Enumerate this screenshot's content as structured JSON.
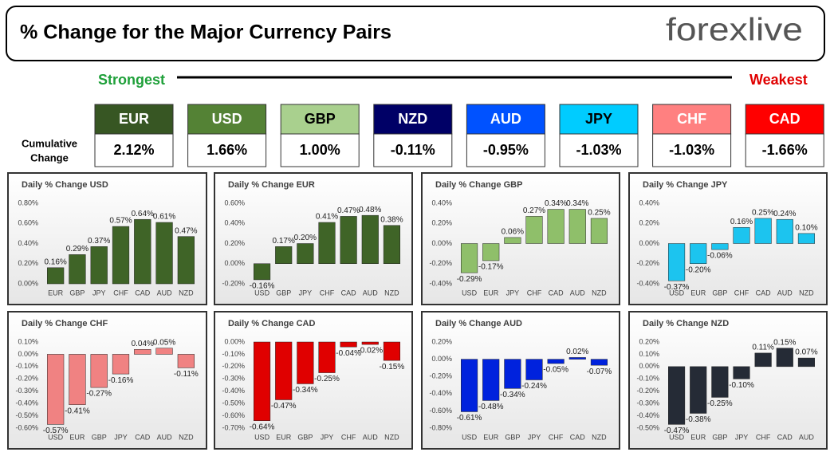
{
  "header": {
    "title": "% Change for the Major Currency Pairs",
    "logo": "forexlive",
    "strongest": "Strongest",
    "weakest": "Weakest"
  },
  "summary": {
    "label": [
      "Cumulative",
      "Change"
    ],
    "tiles": [
      {
        "currency": "EUR",
        "change": "2.12%",
        "color": "#375623",
        "text_color": "#ffffff"
      },
      {
        "currency": "USD",
        "change": "1.66%",
        "color": "#548235",
        "text_color": "#ffffff"
      },
      {
        "currency": "GBP",
        "change": "1.00%",
        "color": "#a9d08e",
        "text_color": "#000000"
      },
      {
        "currency": "NZD",
        "change": "-0.11%",
        "color": "#000066",
        "text_color": "#ffffff"
      },
      {
        "currency": "AUD",
        "change": "-0.95%",
        "color": "#0052ff",
        "text_color": "#ffffff"
      },
      {
        "currency": "JPY",
        "change": "-1.03%",
        "color": "#00ccff",
        "text_color": "#000000"
      },
      {
        "currency": "CHF",
        "change": "-1.03%",
        "color": "#ff8080",
        "text_color": "#ffffff"
      },
      {
        "currency": "CAD",
        "change": "-1.66%",
        "color": "#ff0000",
        "text_color": "#ffffff"
      }
    ]
  },
  "chart_data": [
    {
      "type": "bar",
      "title": "Daily % Change USD",
      "color": "#3f6427",
      "categories": [
        "EUR",
        "GBP",
        "JPY",
        "CHF",
        "CAD",
        "AUD",
        "NZD"
      ],
      "values": [
        0.16,
        0.29,
        0.37,
        0.57,
        0.64,
        0.61,
        0.47
      ],
      "value_labels": [
        "0.16%",
        "0.29%",
        "0.37%",
        "0.57%",
        "0.64%",
        "0.61%",
        "0.47%"
      ],
      "ylim": [
        0,
        0.8
      ],
      "yticks": [
        {
          "value": 0,
          "label": "0.00%"
        },
        {
          "value": 0.2,
          "label": "0.20%"
        },
        {
          "value": 0.4,
          "label": "0.40%"
        },
        {
          "value": 0.6,
          "label": "0.60%"
        },
        {
          "value": 0.8,
          "label": "0.80%"
        }
      ]
    },
    {
      "type": "bar",
      "title": "Daily % Change EUR",
      "color": "#3f6427",
      "categories": [
        "USD",
        "GBP",
        "JPY",
        "CHF",
        "CAD",
        "AUD",
        "NZD"
      ],
      "values": [
        -0.16,
        0.17,
        0.2,
        0.41,
        0.47,
        0.48,
        0.38
      ],
      "value_labels": [
        "-0.16%",
        "0.17%",
        "0.20%",
        "0.41%",
        "0.47%",
        "0.48%",
        "0.38%"
      ],
      "ylim": [
        -0.2,
        0.6
      ],
      "yticks": [
        {
          "value": -0.2,
          "label": "-0.20%"
        },
        {
          "value": 0,
          "label": "0.00%"
        },
        {
          "value": 0.2,
          "label": "0.20%"
        },
        {
          "value": 0.4,
          "label": "0.40%"
        },
        {
          "value": 0.6,
          "label": "0.60%"
        }
      ]
    },
    {
      "type": "bar",
      "title": "Daily % Change GBP",
      "color": "#8fbf6a",
      "categories": [
        "USD",
        "EUR",
        "JPY",
        "CHF",
        "CAD",
        "AUD",
        "NZD"
      ],
      "values": [
        -0.29,
        -0.17,
        0.06,
        0.27,
        0.34,
        0.34,
        0.25
      ],
      "value_labels": [
        "-0.29%",
        "-0.17%",
        "0.06%",
        "0.27%",
        "0.34%",
        "0.34%",
        "0.25%"
      ],
      "ylim": [
        -0.4,
        0.4
      ],
      "yticks": [
        {
          "value": -0.4,
          "label": "-0.40%"
        },
        {
          "value": -0.2,
          "label": "-0.20%"
        },
        {
          "value": 0,
          "label": "0.00%"
        },
        {
          "value": 0.2,
          "label": "0.20%"
        },
        {
          "value": 0.4,
          "label": "0.40%"
        }
      ]
    },
    {
      "type": "bar",
      "title": "Daily % Change JPY",
      "color": "#1cc4ef",
      "categories": [
        "USD",
        "EUR",
        "GBP",
        "CHF",
        "CAD",
        "AUD",
        "NZD"
      ],
      "values": [
        -0.37,
        -0.2,
        -0.06,
        0.16,
        0.25,
        0.24,
        0.1
      ],
      "value_labels": [
        "-0.37%",
        "-0.20%",
        "-0.06%",
        "0.16%",
        "0.25%",
        "0.24%",
        "0.10%"
      ],
      "ylim": [
        -0.4,
        0.4
      ],
      "yticks": [
        {
          "value": -0.4,
          "label": "-0.40%"
        },
        {
          "value": -0.2,
          "label": "-0.20%"
        },
        {
          "value": 0,
          "label": "0.00%"
        },
        {
          "value": 0.2,
          "label": "0.20%"
        },
        {
          "value": 0.4,
          "label": "0.40%"
        }
      ]
    },
    {
      "type": "bar",
      "title": "Daily % Change CHF",
      "color": "#f08282",
      "categories": [
        "USD",
        "EUR",
        "GBP",
        "JPY",
        "CAD",
        "AUD",
        "NZD"
      ],
      "values": [
        -0.57,
        -0.41,
        -0.27,
        -0.16,
        0.04,
        0.05,
        -0.11
      ],
      "value_labels": [
        "-0.57%",
        "-0.41%",
        "-0.27%",
        "-0.16%",
        "0.04%",
        "0.05%",
        "-0.11%"
      ],
      "ylim": [
        -0.6,
        0.1
      ],
      "yticks": [
        {
          "value": 0.1,
          "label": "0.10%"
        },
        {
          "value": 0,
          "label": "0.00%"
        },
        {
          "value": -0.1,
          "label": "-0.10%"
        },
        {
          "value": -0.2,
          "label": "-0.20%"
        },
        {
          "value": -0.3,
          "label": "-0.30%"
        },
        {
          "value": -0.4,
          "label": "-0.40%"
        },
        {
          "value": -0.5,
          "label": "-0.50%"
        },
        {
          "value": -0.6,
          "label": "-0.60%"
        }
      ]
    },
    {
      "type": "bar",
      "title": "Daily % Change CAD",
      "color": "#e00000",
      "categories": [
        "USD",
        "EUR",
        "GBP",
        "JPY",
        "CHF",
        "AUD",
        "NZD"
      ],
      "values": [
        -0.64,
        -0.47,
        -0.34,
        -0.25,
        -0.04,
        -0.02,
        -0.15
      ],
      "value_labels": [
        "-0.64%",
        "-0.47%",
        "-0.34%",
        "-0.25%",
        "-0.04%",
        "-0.02%",
        "-0.15%"
      ],
      "ylim": [
        -0.7,
        0
      ],
      "yticks": [
        {
          "value": 0,
          "label": "0.00%"
        },
        {
          "value": -0.1,
          "label": "-0.10%"
        },
        {
          "value": -0.2,
          "label": "-0.20%"
        },
        {
          "value": -0.3,
          "label": "-0.30%"
        },
        {
          "value": -0.4,
          "label": "-0.40%"
        },
        {
          "value": -0.5,
          "label": "-0.50%"
        },
        {
          "value": -0.6,
          "label": "-0.60%"
        },
        {
          "value": -0.7,
          "label": "-0.70%"
        }
      ]
    },
    {
      "type": "bar",
      "title": "Daily % Change AUD",
      "color": "#0022dd",
      "categories": [
        "USD",
        "EUR",
        "GBP",
        "JPY",
        "CHF",
        "CAD",
        "NZD"
      ],
      "values": [
        -0.61,
        -0.48,
        -0.34,
        -0.24,
        -0.05,
        0.02,
        -0.07
      ],
      "value_labels": [
        "-0.61%",
        "-0.48%",
        "-0.34%",
        "-0.24%",
        "-0.05%",
        "0.02%",
        "-0.07%"
      ],
      "ylim": [
        -0.8,
        0.2
      ],
      "yticks": [
        {
          "value": 0.2,
          "label": "0.20%"
        },
        {
          "value": 0,
          "label": "0.00%"
        },
        {
          "value": -0.2,
          "label": "-0.20%"
        },
        {
          "value": -0.4,
          "label": "-0.40%"
        },
        {
          "value": -0.6,
          "label": "-0.60%"
        },
        {
          "value": -0.8,
          "label": "-0.80%"
        }
      ]
    },
    {
      "type": "bar",
      "title": "Daily % Change NZD",
      "color": "#252b36",
      "categories": [
        "USD",
        "EUR",
        "GBP",
        "JPY",
        "CHF",
        "CAD",
        "AUD"
      ],
      "values": [
        -0.47,
        -0.38,
        -0.25,
        -0.1,
        0.11,
        0.15,
        0.07
      ],
      "value_labels": [
        "-0.47%",
        "-0.38%",
        "-0.25%",
        "-0.10%",
        "0.11%",
        "0.15%",
        "0.07%"
      ],
      "ylim": [
        -0.5,
        0.2
      ],
      "yticks": [
        {
          "value": 0.2,
          "label": "0.20%"
        },
        {
          "value": 0.1,
          "label": "0.10%"
        },
        {
          "value": 0,
          "label": "0.00%"
        },
        {
          "value": -0.1,
          "label": "-0.10%"
        },
        {
          "value": -0.2,
          "label": "-0.20%"
        },
        {
          "value": -0.3,
          "label": "-0.30%"
        },
        {
          "value": -0.4,
          "label": "-0.40%"
        },
        {
          "value": -0.5,
          "label": "-0.50%"
        }
      ]
    }
  ]
}
